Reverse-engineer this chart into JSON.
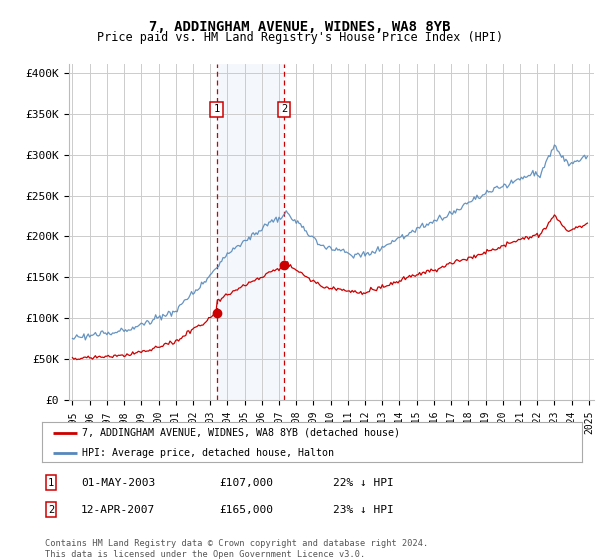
{
  "title": "7, ADDINGHAM AVENUE, WIDNES, WA8 8YB",
  "subtitle": "Price paid vs. HM Land Registry's House Price Index (HPI)",
  "legend_line1": "7, ADDINGHAM AVENUE, WIDNES, WA8 8YB (detached house)",
  "legend_line2": "HPI: Average price, detached house, Halton",
  "footer": "Contains HM Land Registry data © Crown copyright and database right 2024.\nThis data is licensed under the Open Government Licence v3.0.",
  "transaction1": {
    "label": "1",
    "date": "01-MAY-2003",
    "price": "£107,000",
    "hpi_note": "22% ↓ HPI"
  },
  "transaction2": {
    "label": "2",
    "date": "12-APR-2007",
    "price": "£165,000",
    "hpi_note": "23% ↓ HPI"
  },
  "hpi_color": "#5588bb",
  "price_color": "#cc0000",
  "background_color": "#ffffff",
  "grid_color": "#cccccc",
  "ylim": [
    0,
    410000
  ],
  "yticks": [
    0,
    50000,
    100000,
    150000,
    200000,
    250000,
    300000,
    350000,
    400000
  ],
  "ytick_labels": [
    "£0",
    "£50K",
    "£100K",
    "£150K",
    "£200K",
    "£250K",
    "£300K",
    "£350K",
    "£400K"
  ],
  "transaction1_x": 2003.37,
  "transaction2_x": 2007.29,
  "transaction1_y": 107000,
  "transaction2_y": 165000,
  "xlim_left": 1994.8,
  "xlim_right": 2025.3
}
